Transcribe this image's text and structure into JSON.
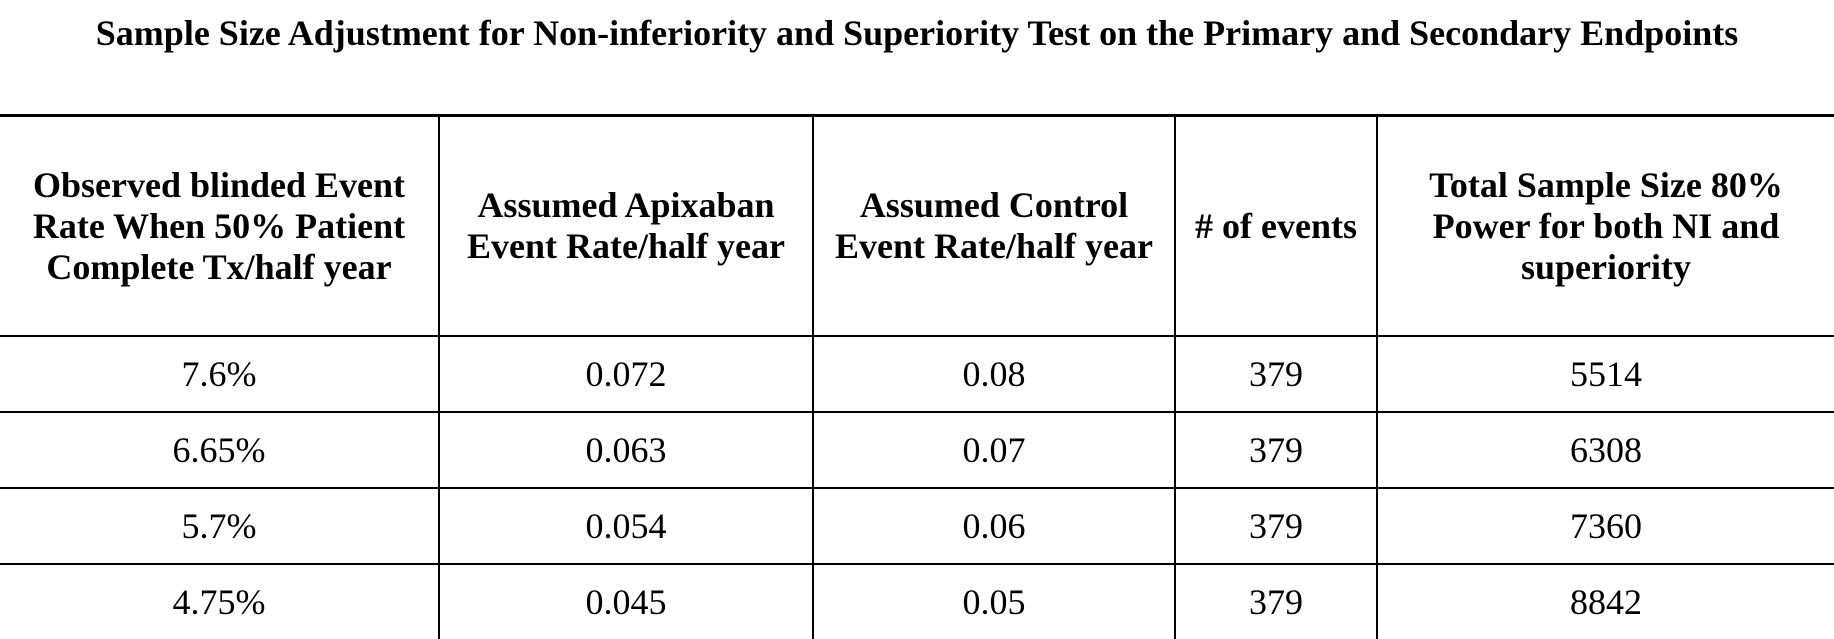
{
  "table": {
    "caption": "Sample Size Adjustment for Non-inferiority and Superiority Test on the Primary and Secondary Endpoints",
    "columns": [
      "Observed blinded Event Rate When 50% Patient Complete Tx/half year",
      "Assumed Apixaban Event Rate/half year",
      "Assumed Control Event Rate/half year",
      "# of events",
      "Total Sample Size 80% Power for both NI and superiority"
    ],
    "rows": [
      [
        "7.6%",
        "0.072",
        "0.08",
        "379",
        "5514"
      ],
      [
        "6.65%",
        "0.063",
        "0.07",
        "379",
        "6308"
      ],
      [
        "5.7%",
        "0.054",
        "0.06",
        "379",
        "7360"
      ],
      [
        "4.75%",
        "0.045",
        "0.05",
        "379",
        "8842"
      ]
    ]
  }
}
